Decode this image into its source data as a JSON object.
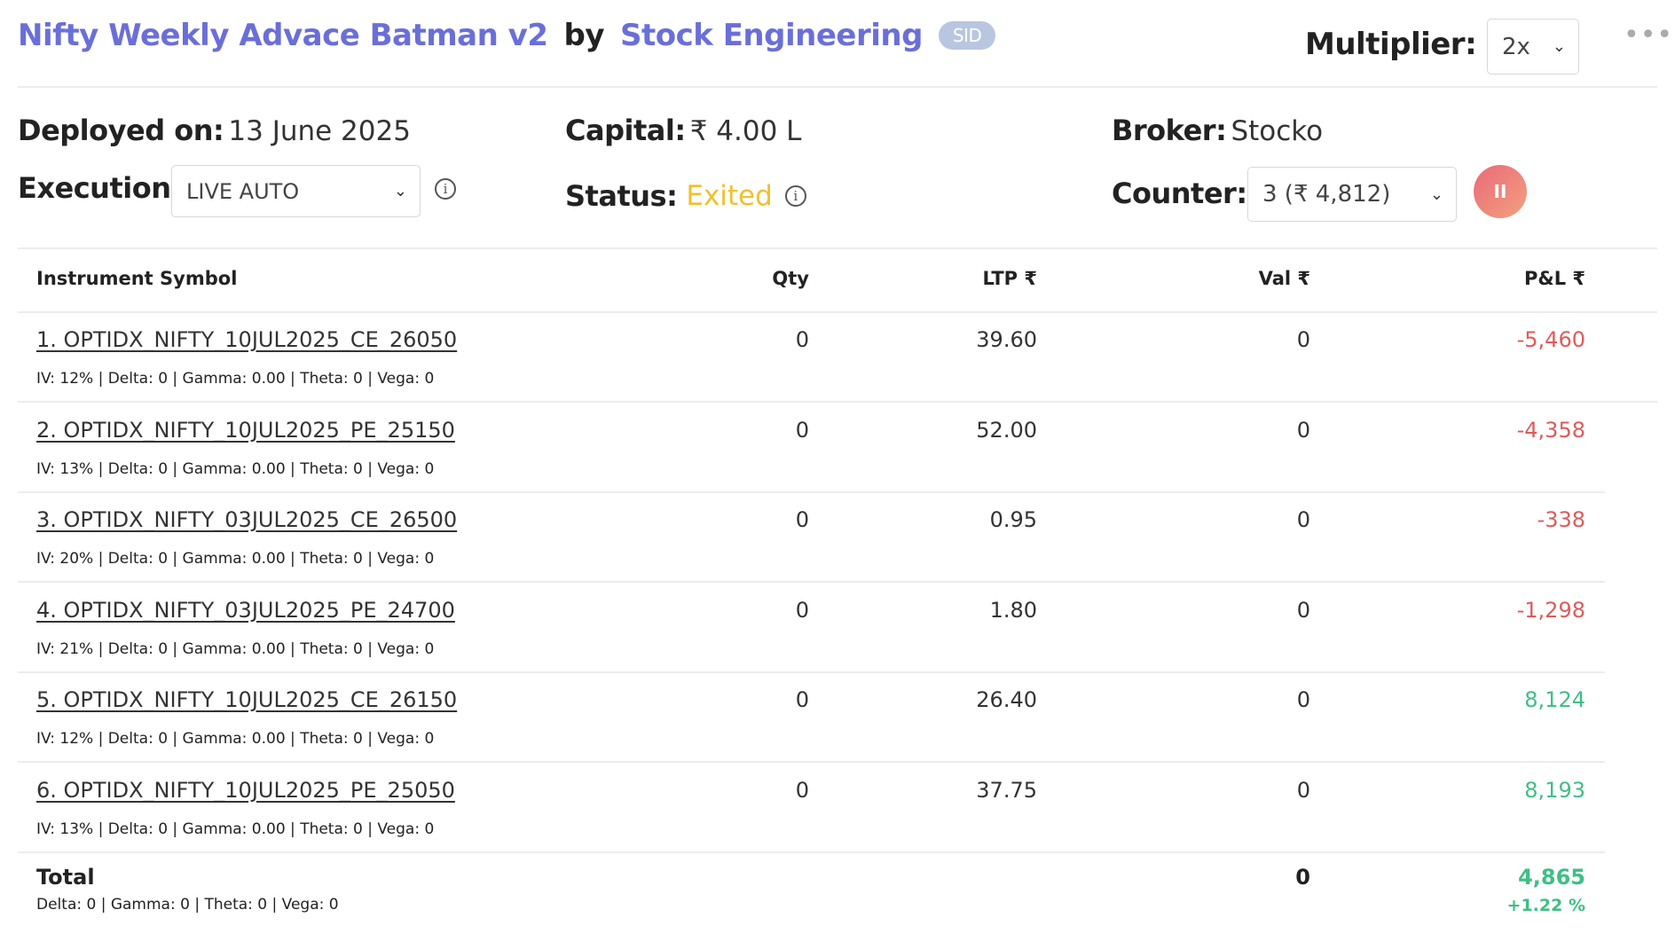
{
  "header": {
    "strategy_name": "Nifty Weekly Advace Batman v2",
    "by": "by",
    "author": "Stock Engineering",
    "badge": "SID",
    "multiplier_label": "Multiplier:",
    "multiplier_value": "2x",
    "more_icon": "more-horizontal-icon"
  },
  "info": {
    "deployed_label": "Deployed on:",
    "deployed_value": "13 June 2025",
    "capital_label": "Capital:",
    "capital_value": "₹ 4.00 L",
    "broker_label": "Broker:",
    "broker_value": "Stocko",
    "execution_label": "Execution:",
    "execution_value": "LIVE AUTO",
    "status_label": "Status:",
    "status_value": "Exited",
    "status_color": "#f0c02e",
    "counter_label": "Counter:",
    "counter_value": "3 (₹ 4,812)",
    "pause_icon": "II"
  },
  "table": {
    "headers": {
      "symbol": "Instrument Symbol",
      "qty": "Qty",
      "ltp": "LTP ₹",
      "val": "Val ₹",
      "pnl": "P&L ₹"
    },
    "rows": [
      {
        "symbol": "1. OPTIDX_NIFTY_10JUL2025_CE_26050",
        "greeks": "IV: 12% | Delta: 0 | Gamma: 0.00 | Theta: 0 | Vega: 0",
        "qty": "0",
        "ltp": "39.60",
        "val": "0",
        "pnl": "-5,460"
      },
      {
        "symbol": "2. OPTIDX_NIFTY_10JUL2025_PE_25150",
        "greeks": "IV: 13% | Delta: 0 | Gamma: 0.00 | Theta: 0 | Vega: 0",
        "qty": "0",
        "ltp": "52.00",
        "val": "0",
        "pnl": "-4,358"
      },
      {
        "symbol": "3. OPTIDX_NIFTY_03JUL2025_CE_26500",
        "greeks": "IV: 20% | Delta: 0 | Gamma: 0.00 | Theta: 0 | Vega: 0",
        "qty": "0",
        "ltp": "0.95",
        "val": "0",
        "pnl": "-338"
      },
      {
        "symbol": "4. OPTIDX_NIFTY_03JUL2025_PE_24700",
        "greeks": "IV: 21% | Delta: 0 | Gamma: 0.00 | Theta: 0 | Vega: 0",
        "qty": "0",
        "ltp": "1.80",
        "val": "0",
        "pnl": "-1,298"
      },
      {
        "symbol": "5. OPTIDX_NIFTY_10JUL2025_CE_26150",
        "greeks": "IV: 12% | Delta: 0 | Gamma: 0.00 | Theta: 0 | Vega: 0",
        "qty": "0",
        "ltp": "26.40",
        "val": "0",
        "pnl": "8,124"
      },
      {
        "symbol": "6. OPTIDX_NIFTY_10JUL2025_PE_25050",
        "greeks": "IV: 13% | Delta: 0 | Gamma: 0.00 | Theta: 0 | Vega: 0",
        "qty": "0",
        "ltp": "37.75",
        "val": "0",
        "pnl": "8,193"
      }
    ],
    "total": {
      "label": "Total",
      "greeks": "Delta: 0 | Gamma: 0  | Theta: 0 | Vega: 0",
      "val": "0",
      "pnl": "4,865",
      "pnl_pct": "+1.22 %"
    }
  },
  "colors": {
    "link": "#6a6fd8",
    "negative": "#e05a5a",
    "positive": "#3fbf85"
  }
}
